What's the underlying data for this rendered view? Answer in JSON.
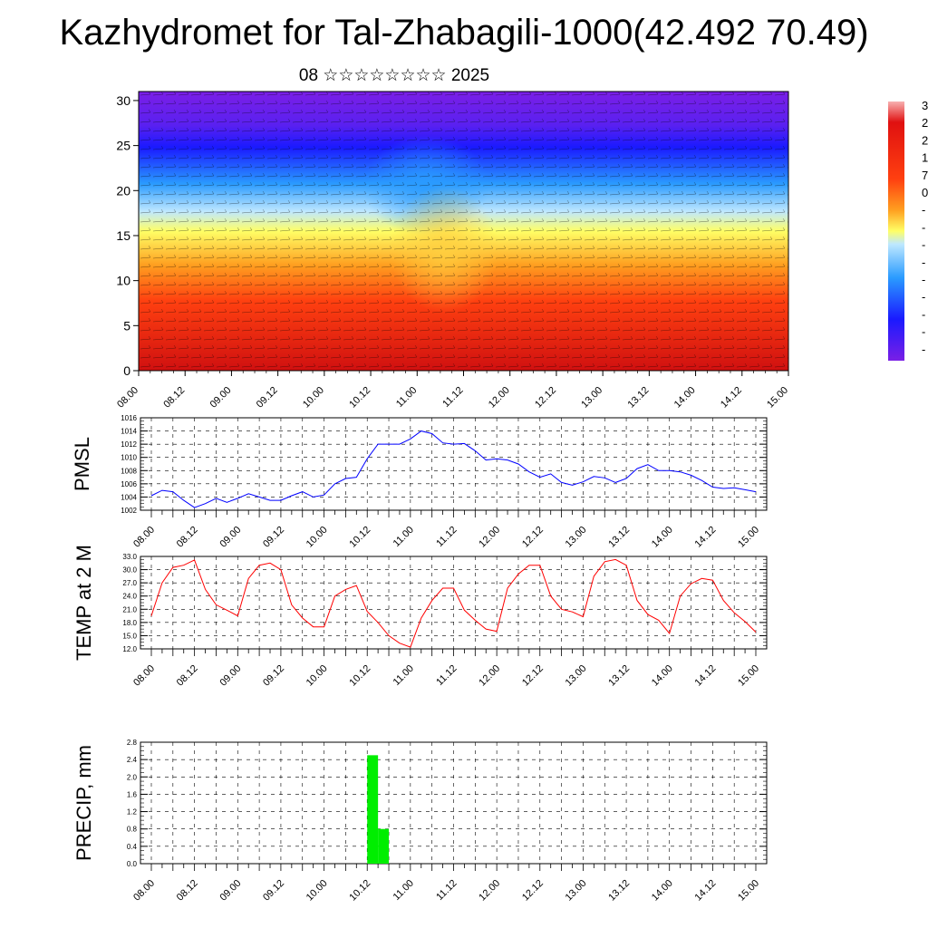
{
  "title": "Kazhydromet for Tal-Zhabagili-1000(42.492 70.49)",
  "subtitle": "08 ☆☆☆☆☆☆☆☆ 2025",
  "chart_data": [
    {
      "type": "heatmap",
      "title": "",
      "x_tick_labels": [
        "08.00",
        "08.12",
        "09.00",
        "09.12",
        "10.00",
        "10.12",
        "11.00",
        "11.12",
        "12.00",
        "12.12",
        "13.00",
        "13.12",
        "14.00",
        "14.12",
        "15.00"
      ],
      "y_ticks": [
        0,
        5,
        10,
        15,
        20,
        25,
        30
      ],
      "ylim": [
        0,
        31
      ],
      "colorbar_labels": [
        "3",
        "2",
        "2",
        "1",
        "7",
        "0",
        "-",
        "-",
        "-",
        "-",
        "-",
        "-",
        "-",
        "-",
        "-"
      ],
      "colors": [
        "#7a1fe6",
        "#1a1aff",
        "#2a9bff",
        "#bfe8ff",
        "#ffff66",
        "#ffa020",
        "#ff4010",
        "#d01010",
        "#f8b0b0"
      ]
    },
    {
      "type": "line",
      "ylabel": "PMSL",
      "x_tick_labels": [
        "08.00",
        "08.12",
        "09.00",
        "09.12",
        "10.00",
        "10.12",
        "11.00",
        "11.12",
        "12.00",
        "12.12",
        "13.00",
        "13.12",
        "14.00",
        "14.12",
        "15.00"
      ],
      "ylim": [
        1002,
        1016
      ],
      "y_ticks": [
        1002,
        1004,
        1006,
        1008,
        1010,
        1012,
        1014,
        1016
      ],
      "color": "#0000ff",
      "values": [
        1004.2,
        1005.0,
        1004.8,
        1003.5,
        1002.4,
        1003.0,
        1003.8,
        1003.2,
        1003.8,
        1004.5,
        1004.0,
        1003.5,
        1003.5,
        1004.2,
        1004.8,
        1004.0,
        1004.3,
        1006.0,
        1006.8,
        1007.0,
        1009.8,
        1012.0,
        1012.0,
        1012.0,
        1012.8,
        1014.0,
        1013.6,
        1012.2,
        1012.0,
        1012.1,
        1011.0,
        1009.6,
        1009.8,
        1009.6,
        1009.0,
        1007.8,
        1007.0,
        1007.5,
        1006.2,
        1005.8,
        1006.3,
        1007.1,
        1006.9,
        1006.2,
        1006.8,
        1008.3,
        1008.9,
        1008.0,
        1008.0,
        1007.8,
        1007.3,
        1006.5,
        1005.5,
        1005.3,
        1005.4,
        1005.1,
        1004.8
      ]
    },
    {
      "type": "line",
      "ylabel": "TEMP at 2 M",
      "x_tick_labels": [
        "08.00",
        "08.12",
        "09.00",
        "09.12",
        "10.00",
        "10.12",
        "11.00",
        "11.12",
        "12.00",
        "12.12",
        "13.00",
        "13.12",
        "14.00",
        "14.12",
        "15.00"
      ],
      "ylim": [
        12,
        33
      ],
      "y_ticks": [
        "12.0",
        "15.0",
        "18.0",
        "21.0",
        "24.0",
        "27.0",
        "30.0",
        "33.0"
      ],
      "color": "#ff0000",
      "values": [
        19.5,
        27.0,
        30.5,
        31.0,
        32.2,
        25.5,
        22.0,
        20.8,
        19.5,
        28.0,
        31.0,
        31.5,
        30.0,
        22.0,
        19.0,
        17.0,
        17.0,
        24.0,
        25.5,
        26.4,
        20.5,
        18.0,
        15.0,
        13.3,
        12.4,
        19.0,
        23.0,
        25.8,
        25.8,
        20.8,
        18.5,
        16.5,
        16.0,
        25.8,
        29.0,
        31.0,
        31.0,
        24.0,
        21.0,
        20.4,
        19.3,
        28.5,
        31.8,
        32.3,
        31.0,
        23.0,
        19.8,
        18.5,
        15.5,
        24.0,
        26.8,
        28.0,
        27.6,
        23.0,
        20.2,
        18.2,
        15.8
      ]
    },
    {
      "type": "bar",
      "ylabel": "PRECIP, mm",
      "x_tick_labels": [
        "08.00",
        "08.12",
        "09.00",
        "09.12",
        "10.00",
        "10.12",
        "11.00",
        "11.12",
        "12.00",
        "12.12",
        "13.00",
        "13.12",
        "14.00",
        "14.12",
        "15.00"
      ],
      "ylim": [
        0,
        2.8
      ],
      "y_ticks": [
        "0.0",
        "0.4",
        "0.8",
        "1.2",
        "1.6",
        "2.0",
        "2.4",
        "2.8"
      ],
      "color": "#00ee00",
      "bars": [
        {
          "x_step": 20,
          "value": 2.5
        },
        {
          "x_step": 21,
          "value": 0.8
        }
      ]
    }
  ]
}
